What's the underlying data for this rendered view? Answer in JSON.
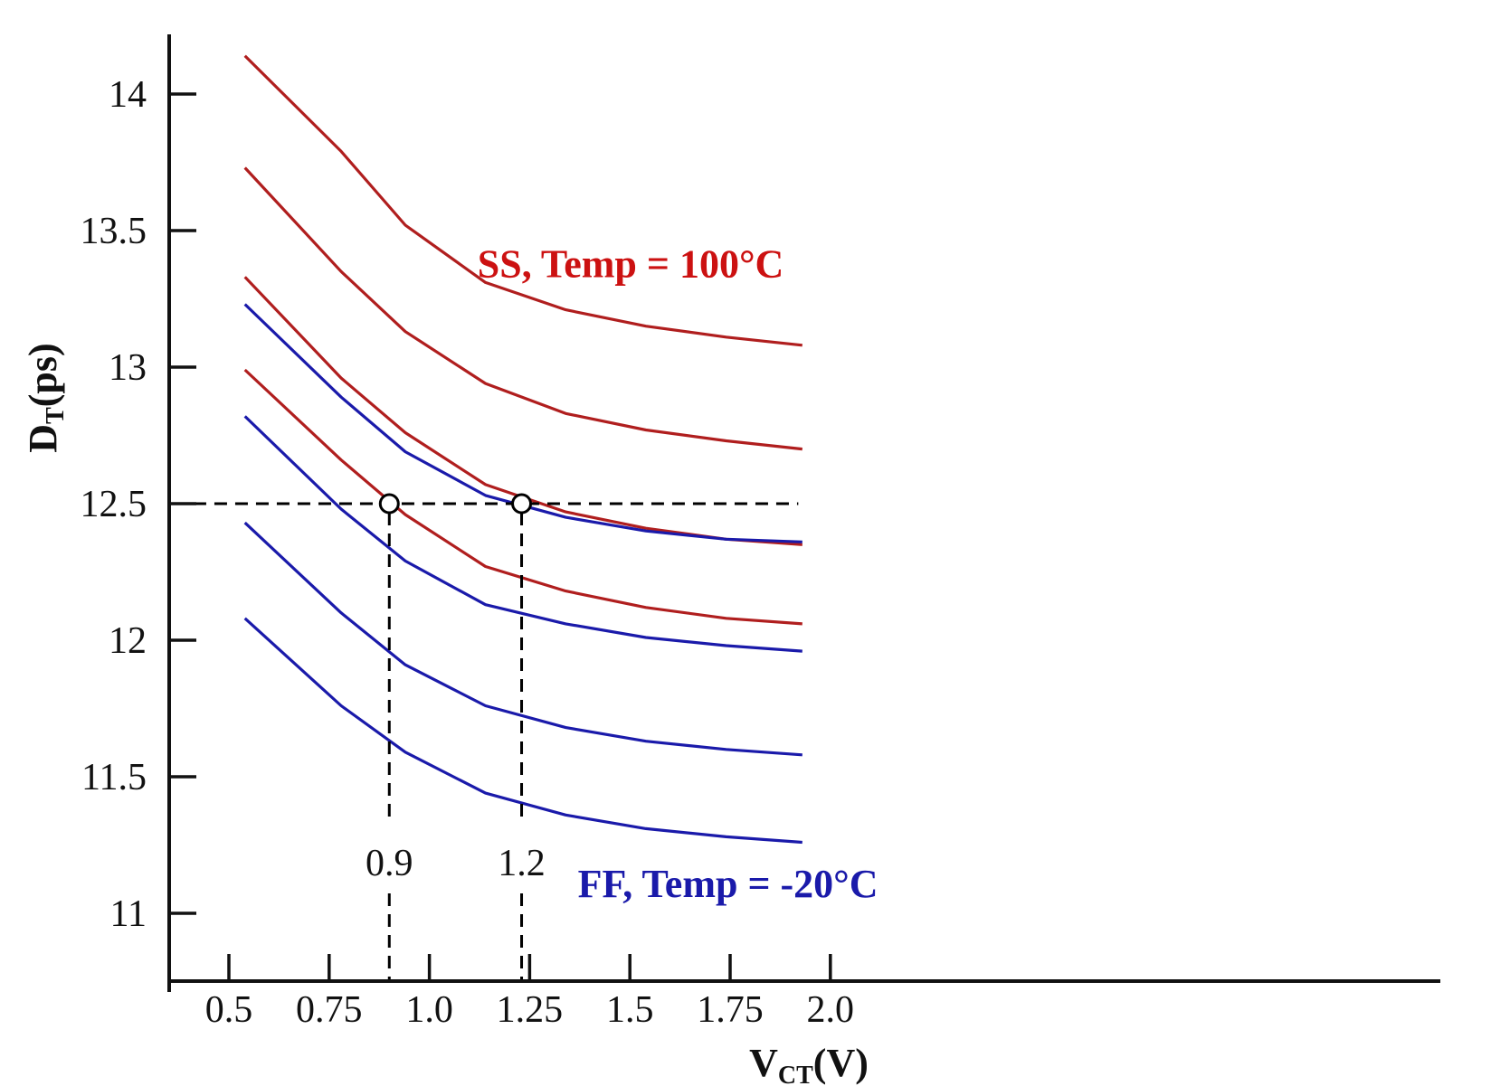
{
  "chart_data": {
    "type": "line",
    "xlabel": {
      "main": "V",
      "sub": "CT",
      "unit": "(V)"
    },
    "ylabel": {
      "main": "D",
      "sub": "T",
      "unit": "(ps)"
    },
    "xlim": [
      0.36,
      2.0
    ],
    "ylim": [
      10.8,
      14.22
    ],
    "x_ticks": [
      {
        "value": 0.5,
        "label": "0.5"
      },
      {
        "value": 0.75,
        "label": "0.75"
      },
      {
        "value": 1.0,
        "label": "1.0"
      },
      {
        "value": 1.25,
        "label": "1.25"
      },
      {
        "value": 1.5,
        "label": "1.5"
      },
      {
        "value": 1.75,
        "label": "1.75"
      },
      {
        "value": 2.0,
        "label": "2.0"
      }
    ],
    "y_ticks": [
      {
        "value": 11,
        "label": "11"
      },
      {
        "value": 11.5,
        "label": "11.5"
      },
      {
        "value": 12,
        "label": "12"
      },
      {
        "value": 12.5,
        "label": "12.5"
      },
      {
        "value": 13,
        "label": "13"
      },
      {
        "value": 13.5,
        "label": "13.5"
      },
      {
        "value": 14,
        "label": "14"
      }
    ],
    "grid": false,
    "x": [
      0.54,
      0.78,
      0.94,
      1.14,
      1.34,
      1.54,
      1.74,
      1.93
    ],
    "series": [
      {
        "color": "#b01e1e",
        "values": [
          14.14,
          13.79,
          13.52,
          13.31,
          13.21,
          13.15,
          13.11,
          13.08
        ]
      },
      {
        "color": "#b01e1e",
        "values": [
          13.73,
          13.35,
          13.13,
          12.94,
          12.83,
          12.77,
          12.73,
          12.7
        ]
      },
      {
        "color": "#b01e1e",
        "values": [
          13.33,
          12.96,
          12.76,
          12.57,
          12.47,
          12.41,
          12.37,
          12.35
        ]
      },
      {
        "color": "#b01e1e",
        "values": [
          12.99,
          12.66,
          12.46,
          12.27,
          12.18,
          12.12,
          12.08,
          12.06
        ]
      },
      {
        "color": "#1a1aaa",
        "values": [
          13.23,
          12.89,
          12.69,
          12.53,
          12.45,
          12.4,
          12.37,
          12.36
        ]
      },
      {
        "color": "#1a1aaa",
        "values": [
          12.82,
          12.48,
          12.29,
          12.13,
          12.06,
          12.01,
          11.98,
          11.96
        ]
      },
      {
        "color": "#1a1aaa",
        "values": [
          12.43,
          12.1,
          11.91,
          11.76,
          11.68,
          11.63,
          11.6,
          11.58
        ]
      },
      {
        "color": "#1a1aaa",
        "values": [
          12.08,
          11.76,
          11.59,
          11.44,
          11.36,
          11.31,
          11.28,
          11.26
        ]
      }
    ],
    "reference_line": {
      "y": 12.5,
      "x_from": 0.36,
      "x_to": 1.92,
      "style": "dashed",
      "color": "#000000"
    },
    "markers": [
      {
        "x": 0.9,
        "y": 12.5,
        "label": "0.9"
      },
      {
        "x": 1.23,
        "y": 12.5,
        "label": "1.2"
      }
    ],
    "annotations": [
      {
        "text": "SS, Temp = 100°C",
        "color": "#cc1111",
        "x": 1.12,
        "y": 13.33,
        "anchor": "start"
      },
      {
        "text": "FF, Temp = -20°C",
        "color": "#1a1aaa",
        "x": 1.37,
        "y": 11.06,
        "anchor": "start"
      }
    ]
  }
}
